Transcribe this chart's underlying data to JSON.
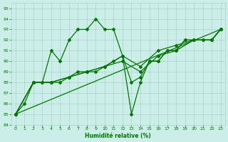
{
  "xlabel": "Humidité relative (%)",
  "bg_color": "#cceee8",
  "grid_color": "#aad4cc",
  "line_color": "#007700",
  "xlim": [
    -0.5,
    23.5
  ],
  "ylim": [
    84,
    95.5
  ],
  "yticks": [
    84,
    85,
    86,
    87,
    88,
    89,
    90,
    91,
    92,
    93,
    94,
    95
  ],
  "xticks": [
    0,
    1,
    2,
    3,
    4,
    5,
    6,
    7,
    8,
    9,
    10,
    11,
    12,
    13,
    14,
    15,
    16,
    17,
    18,
    19,
    20,
    21,
    22,
    23
  ],
  "series": [
    {
      "x": [
        0,
        1,
        2,
        3,
        4,
        5,
        6,
        7,
        8,
        9,
        10,
        11,
        12,
        13,
        14,
        15,
        16,
        17,
        18,
        19,
        20,
        21,
        22,
        23
      ],
      "y": [
        85,
        86,
        88,
        88,
        91,
        90,
        92,
        93,
        93,
        94,
        93,
        93,
        90.5,
        88,
        88.5,
        90,
        90,
        91,
        91,
        92,
        92,
        92,
        92,
        93
      ]
    },
    {
      "x": [
        0,
        2,
        3,
        4,
        5,
        6,
        7,
        8,
        9,
        10,
        11,
        12,
        13,
        14,
        15,
        16,
        17,
        18,
        19,
        20,
        21,
        22,
        23
      ],
      "y": [
        85,
        88,
        88,
        88,
        88,
        88.5,
        89,
        89,
        89,
        89.5,
        90,
        90.5,
        85,
        88,
        90,
        90,
        91,
        91,
        92,
        92,
        92,
        92,
        93
      ]
    },
    {
      "x": [
        0,
        2,
        4,
        6,
        8,
        10,
        12,
        14,
        16,
        18,
        20,
        22,
        23
      ],
      "y": [
        85,
        88,
        88,
        88.5,
        89,
        89.5,
        90,
        89,
        90.5,
        91,
        92,
        92,
        93
      ]
    },
    {
      "x": [
        0,
        2,
        4,
        6,
        8,
        10,
        12,
        14,
        16,
        18,
        20,
        22,
        23
      ],
      "y": [
        85,
        88,
        88,
        88.5,
        89,
        89.5,
        90.5,
        89.5,
        91,
        91.5,
        92,
        92,
        93
      ]
    },
    {
      "x": [
        0,
        23
      ],
      "y": [
        85,
        93
      ]
    }
  ]
}
